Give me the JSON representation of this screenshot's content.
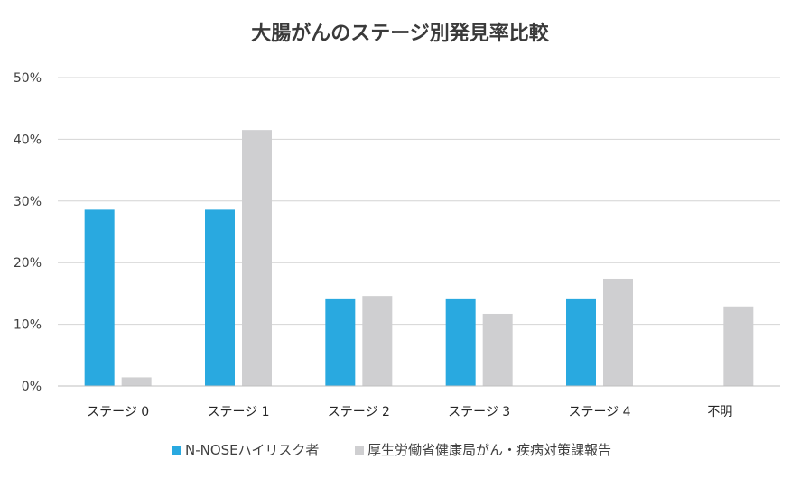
{
  "chart_data": {
    "type": "bar",
    "title": "大腸がんのステージ別発見率比較",
    "categories": [
      "ステージ 0",
      "ステージ 1",
      "ステージ 2",
      "ステージ 3",
      "ステージ 4",
      "不明"
    ],
    "series": [
      {
        "name": "N-NOSEハイリスク者",
        "values": [
          28.6,
          28.6,
          14.2,
          14.2,
          14.2,
          0
        ],
        "color": "#29a9e0"
      },
      {
        "name": "厚生労働省健康局がん・疾病対策課報告",
        "values": [
          1.4,
          41.5,
          14.6,
          11.7,
          17.4,
          12.9
        ],
        "color": "#cfcfd1"
      }
    ],
    "ylim": [
      0,
      50
    ],
    "yticks": [
      "0%",
      "10%",
      "20%",
      "30%",
      "40%",
      "50%"
    ],
    "ytick_values": [
      0,
      10,
      20,
      30,
      40,
      50
    ],
    "grid": true,
    "legend_position": "bottom",
    "xlabel": "",
    "ylabel": ""
  }
}
